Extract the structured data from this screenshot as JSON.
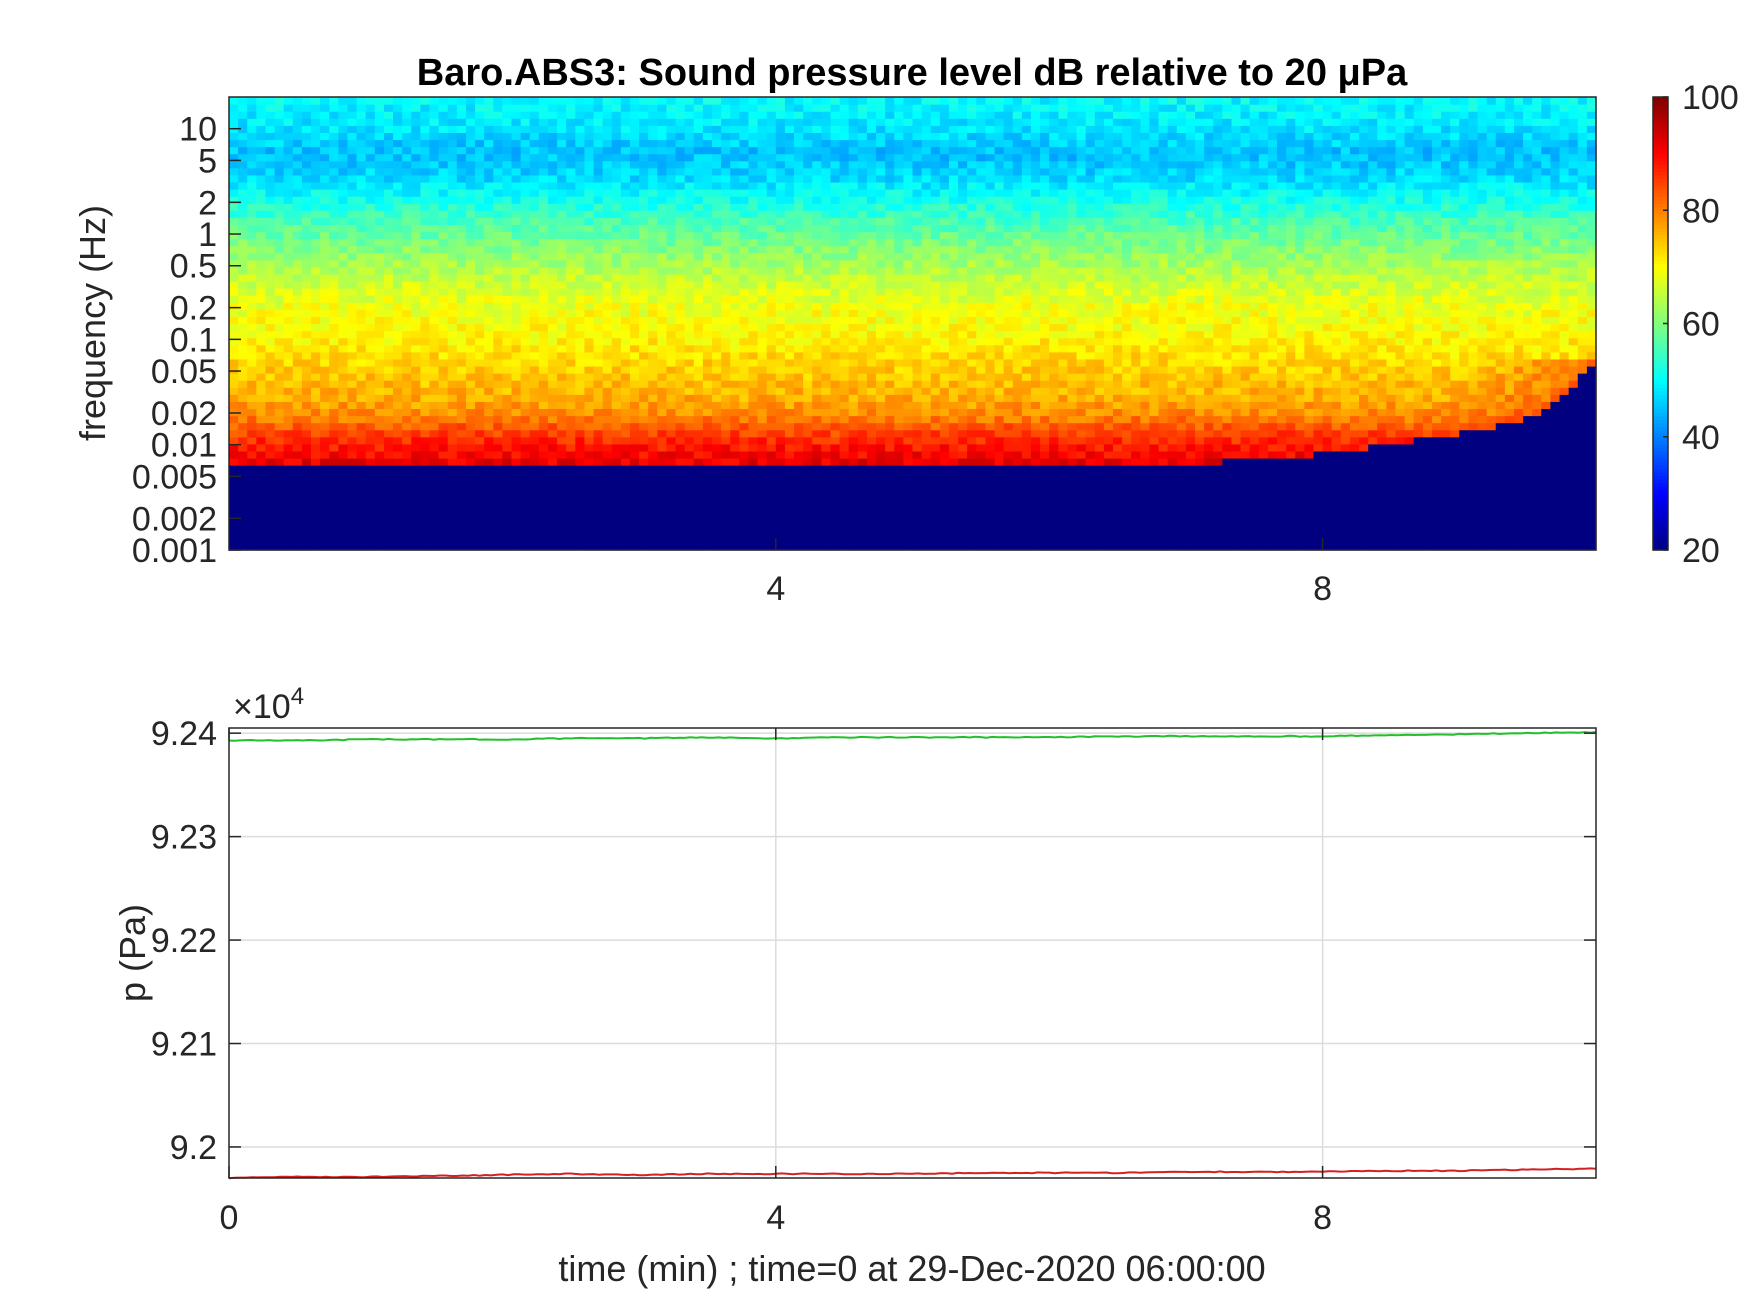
{
  "chart_data": [
    {
      "type": "heatmap",
      "title": "Baro.ABS3: Sound pressure level dB relative to 20 μPa",
      "ylabel": "frequency (Hz)",
      "xlabel": "",
      "x_scale": "linear",
      "y_scale": "log",
      "xlim": [
        0,
        10
      ],
      "ylim": [
        0.001,
        20
      ],
      "x_ticks": [
        4,
        8
      ],
      "y_ticks": [
        0.001,
        0.002,
        0.005,
        0.01,
        0.02,
        0.05,
        0.1,
        0.2,
        0.5,
        1,
        2,
        5,
        10
      ],
      "y_tick_labels": [
        "0.001",
        "0.002",
        "0.005",
        "0.01",
        "0.02",
        "0.05",
        "0.1",
        "0.2",
        "0.5",
        "1",
        "2",
        "5",
        "10"
      ],
      "colormap": "jet",
      "colorbar": {
        "min": 20,
        "max": 100,
        "ticks": [
          20,
          40,
          60,
          80,
          100
        ]
      },
      "floor_value_db": 20,
      "floor_boundary": {
        "time_min": [
          0,
          6.9,
          7.3,
          7.9,
          8.2,
          8.9,
          9.3,
          9.6,
          9.8,
          9.9,
          10
        ],
        "freq_hz": [
          0.006,
          0.006,
          0.007,
          0.008,
          0.009,
          0.012,
          0.015,
          0.02,
          0.03,
          0.05,
          0.06
        ]
      },
      "profile_freq_hz": [
        0.006,
        0.008,
        0.012,
        0.02,
        0.03,
        0.05,
        0.08,
        0.12,
        0.2,
        0.35,
        0.6,
        1,
        2,
        3.5,
        6,
        10,
        20
      ],
      "profile_level_db": [
        93,
        90,
        86,
        79,
        76,
        74,
        72,
        70,
        69,
        66,
        62,
        58,
        52,
        47,
        45,
        48,
        50
      ]
    },
    {
      "type": "line",
      "xlabel": "time (min) ; time=0 at 29-Dec-2020 06:00:00",
      "ylabel": "p (Pa)",
      "xlim": [
        0,
        10
      ],
      "ylim": [
        91970,
        92405
      ],
      "x_ticks": [
        0,
        4,
        8
      ],
      "y_ticks": [
        92000,
        92100,
        92200,
        92300,
        92400
      ],
      "y_tick_labels": [
        "9.2",
        "9.21",
        "9.22",
        "9.23",
        "9.24"
      ],
      "y_exponent_label": "×10",
      "y_exponent_power": "4",
      "grid": true,
      "series": [
        {
          "color": "#22c02a",
          "x": [
            0,
            0.5,
            1,
            1.5,
            2,
            2.5,
            3,
            3.5,
            4,
            4.5,
            5,
            5.5,
            6,
            6.5,
            7,
            7.5,
            8,
            8.5,
            9,
            9.5,
            10
          ],
          "values": [
            92393,
            92393,
            92394,
            92394,
            92394,
            92395,
            92395,
            92396,
            92395,
            92396,
            92396,
            92396,
            92396,
            92397,
            92397,
            92397,
            92397,
            92398,
            92399,
            92400,
            92401
          ]
        },
        {
          "color": "#d42020",
          "x": [
            0,
            0.5,
            1,
            1.5,
            2,
            2.5,
            3,
            3.5,
            4,
            4.5,
            5,
            5.5,
            6,
            6.5,
            7,
            7.5,
            8,
            8.5,
            9,
            9.5,
            10
          ],
          "values": [
            91970,
            91971,
            91971,
            91972,
            91973,
            91974,
            91973,
            91974,
            91974,
            91974,
            91974,
            91975,
            91975,
            91975,
            91976,
            91976,
            91976,
            91977,
            91977,
            91978,
            91979
          ]
        }
      ]
    }
  ]
}
